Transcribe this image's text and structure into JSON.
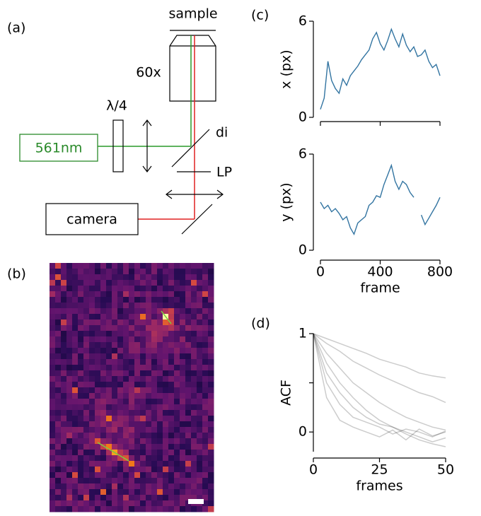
{
  "panel_labels": [
    "(a)",
    "(b)",
    "(c)",
    "(d)"
  ],
  "diagram": {
    "sample": "sample",
    "objective": "60x",
    "waveplate": "λ/4",
    "laser": "561nm",
    "dichroic": "di",
    "longpass": "LP",
    "camera": "camera"
  },
  "chart_data": [
    {
      "type": "line",
      "ylabel": "x (px)",
      "color": "#3274a1",
      "x": [
        0,
        25,
        50,
        75,
        100,
        125,
        150,
        175,
        200,
        225,
        250,
        275,
        300,
        325,
        350,
        375,
        400,
        425,
        450,
        475,
        500,
        525,
        550,
        575,
        600,
        625,
        650,
        675,
        700,
        725,
        750,
        775,
        800
      ],
      "values": [
        0.5,
        1.2,
        3.5,
        2.3,
        1.8,
        1.5,
        2.4,
        2.0,
        2.6,
        2.9,
        3.2,
        3.6,
        3.9,
        4.2,
        4.9,
        5.3,
        4.6,
        4.2,
        4.8,
        5.5,
        4.9,
        4.4,
        5.2,
        4.5,
        4.1,
        4.4,
        3.8,
        3.9,
        4.2,
        3.5,
        3.1,
        3.3,
        2.6
      ],
      "xlim": [
        0,
        800
      ],
      "xticks": [
        0,
        400,
        800
      ],
      "ylim": [
        0,
        6
      ],
      "yticks": [
        0,
        6
      ]
    },
    {
      "type": "line",
      "ylabel": "y (px)",
      "xlabel": "frame",
      "color": "#3274a1",
      "x": [
        0,
        25,
        50,
        75,
        100,
        125,
        150,
        175,
        200,
        225,
        250,
        275,
        300,
        325,
        350,
        375,
        400,
        425,
        450,
        475,
        500,
        525,
        550,
        575,
        600,
        625,
        650,
        675,
        700,
        725,
        750,
        775,
        800
      ],
      "values": [
        3.0,
        2.6,
        2.8,
        2.4,
        2.6,
        2.3,
        1.9,
        2.1,
        1.4,
        1.0,
        1.7,
        1.9,
        2.1,
        2.8,
        3.0,
        3.4,
        3.3,
        4.1,
        4.7,
        5.3,
        4.3,
        3.8,
        4.3,
        4.1,
        3.6,
        3.3,
        null,
        2.2,
        1.6,
        2.0,
        2.4,
        2.8,
        3.3
      ],
      "xlim": [
        0,
        800
      ],
      "xticks": [
        0,
        400,
        800
      ],
      "ylim": [
        0,
        6
      ],
      "yticks": [
        0,
        6
      ]
    },
    {
      "type": "line",
      "ylabel": "ACF",
      "xlabel": "frames",
      "line_opacity": 0.2,
      "x": [
        0,
        5,
        10,
        15,
        20,
        25,
        30,
        35,
        40,
        45,
        50
      ],
      "series": [
        {
          "color": "#000000",
          "values": [
            1,
            0.35,
            0.12,
            0.05,
            0.0,
            -0.05,
            0.02,
            -0.08,
            0.03,
            -0.04,
            0.0
          ]
        },
        {
          "color": "#000000",
          "values": [
            1,
            0.6,
            0.4,
            0.25,
            0.15,
            0.08,
            0.05,
            0.0,
            -0.05,
            -0.1,
            -0.06
          ]
        },
        {
          "color": "#000000",
          "values": [
            1,
            0.8,
            0.65,
            0.5,
            0.4,
            0.3,
            0.22,
            0.15,
            0.1,
            0.05,
            0.02
          ]
        },
        {
          "color": "#000000",
          "values": [
            1,
            0.9,
            0.82,
            0.72,
            0.65,
            0.58,
            0.52,
            0.46,
            0.4,
            0.36,
            0.3
          ]
        },
        {
          "color": "#000000",
          "values": [
            1,
            0.7,
            0.5,
            0.35,
            0.22,
            0.12,
            0.05,
            -0.02,
            -0.08,
            -0.12,
            -0.15
          ]
        },
        {
          "color": "#000000",
          "values": [
            1,
            0.5,
            0.28,
            0.15,
            0.1,
            0.05,
            -0.02,
            0.03,
            0.0,
            -0.05,
            0.01
          ]
        },
        {
          "color": "#000000",
          "values": [
            1,
            0.95,
            0.9,
            0.85,
            0.8,
            0.74,
            0.7,
            0.66,
            0.6,
            0.57,
            0.55
          ]
        }
      ],
      "xlim": [
        0,
        50
      ],
      "xticks": [
        0,
        25,
        50
      ],
      "ylim": [
        -0.2,
        1
      ],
      "yticks": [
        0,
        1
      ],
      "yminor": [
        0.5
      ]
    }
  ]
}
